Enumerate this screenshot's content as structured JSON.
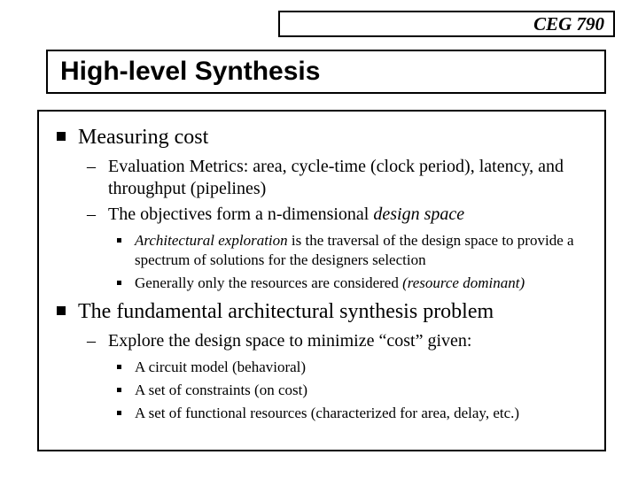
{
  "course": "CEG 790",
  "title": "High-level Synthesis",
  "b1": "Measuring cost",
  "b1_1a": "Evaluation Metrics: area, cycle-time (clock period), latency, and throughput (pipelines)",
  "b1_2a": "The objectives form a n-dimensional ",
  "b1_2b": "design space",
  "b1_2_1a": "Architectural exploration",
  "b1_2_1b": " is the traversal of the design space to provide a spectrum of solutions for the designers selection",
  "b1_2_2a": "Generally only the resources are considered ",
  "b1_2_2b": "(resource dominant)",
  "b2": "The fundamental architectural synthesis problem",
  "b2_1": "Explore the design space to minimize “cost” given:",
  "b2_1_1": "A circuit model (behavioral)",
  "b2_1_2": "A set of constraints (on cost)",
  "b2_1_3": "A set of functional resources (characterized for area, delay, etc.)"
}
